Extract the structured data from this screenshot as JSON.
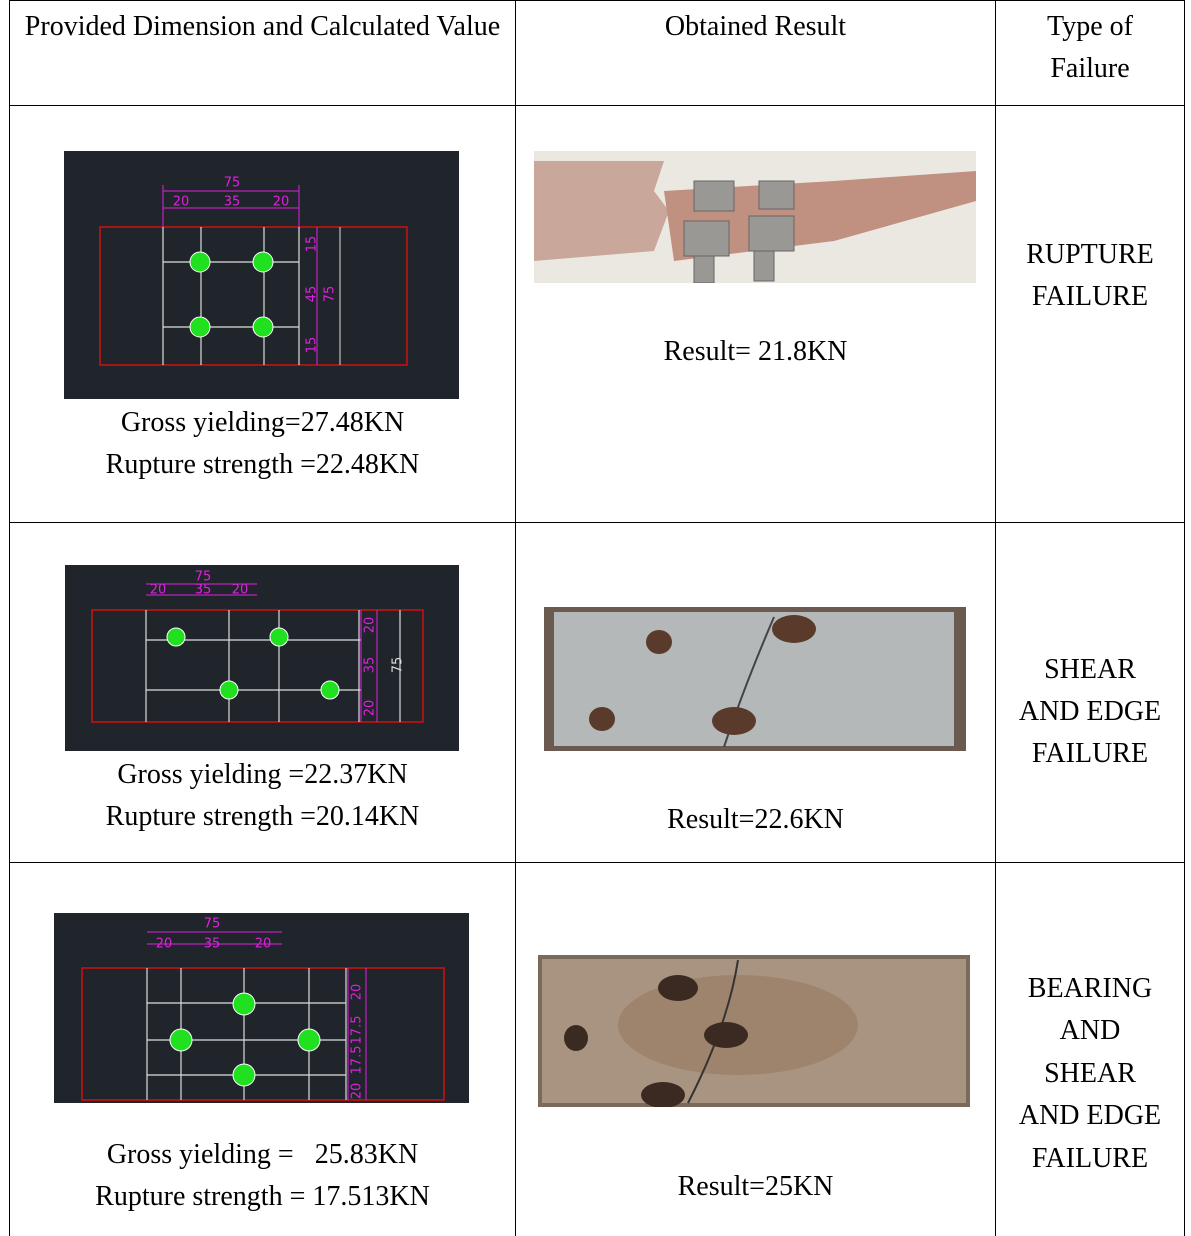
{
  "header": [
    "Provided Dimension and Calculated Value",
    "Obtained Result",
    "Type of Failure"
  ],
  "rows": [
    {
      "drawing_labels": [
        "75",
        "20",
        "35",
        "20",
        "15",
        "45",
        "15",
        "75"
      ],
      "calculated": [
        "Gross yielding=27.48KN",
        "Rupture strength =22.48KN"
      ],
      "result": "Result= 21.8KN",
      "failure": [
        "RUPTURE",
        "FAILURE"
      ]
    },
    {
      "drawing_labels": [
        "75",
        "20",
        "35",
        "20",
        "20",
        "35",
        "20",
        "75"
      ],
      "calculated": [
        "Gross yielding =22.37KN",
        "Rupture strength =20.14KN"
      ],
      "result": "Result=22.6KN",
      "failure": [
        "SHEAR",
        "AND EDGE",
        "FAILURE"
      ]
    },
    {
      "drawing_labels": [
        "75",
        "20",
        "35",
        "20",
        "20",
        "17.5",
        "17.5",
        "20"
      ],
      "calculated": [
        "Gross yielding =   25.83KN",
        "Rupture strength = 17.513KN"
      ],
      "result": "Result=25KN",
      "failure": [
        "BEARING",
        "AND",
        "SHEAR",
        "AND EDGE",
        "FAILURE"
      ]
    }
  ]
}
